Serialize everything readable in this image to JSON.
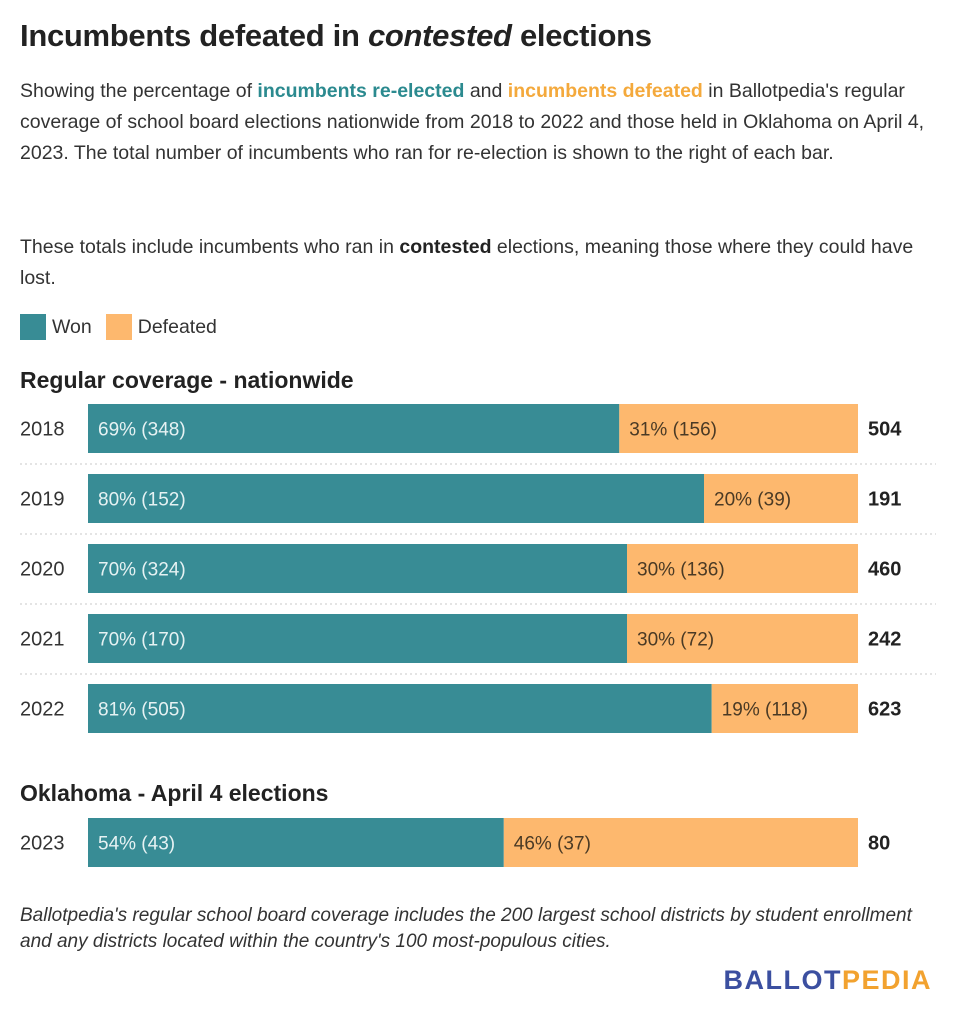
{
  "header": {
    "title_pre": "Incumbents defeated in ",
    "title_em": "contested",
    "title_post": " elections"
  },
  "description": {
    "p1_a": "Showing the percentage of ",
    "p1_won": "incumbents re-elected",
    "p1_b": " and ",
    "p1_def": "incumbents defeated",
    "p1_c": " in Ballotpedia's regular coverage of school board elections nationwide from 2018 to 2022 and those held in Oklahoma on April 4, 2023. The total number of incumbents who ran for re-election is shown to the right of each bar.",
    "p2_a": "These totals include incumbents who ran in ",
    "p2_bold": "contested",
    "p2_b": " elections, meaning those where they could have lost."
  },
  "legend": {
    "won": "Won",
    "defeated": "Defeated"
  },
  "colors": {
    "won": "#388c95",
    "defeated": "#fdb86e",
    "won_text": "#2b8a8f",
    "defeated_text": "#f4a93c"
  },
  "footnote": "Ballotpedia's regular school board coverage includes the 200 largest school districts by student enrollment and any districts located within the country's 100 most-populous cities.",
  "logo": {
    "part1": "BALLOT",
    "part2": "PEDIA"
  },
  "chart_data": {
    "type": "bar",
    "orientation": "horizontal",
    "stacked": true,
    "series_names": [
      "Won",
      "Defeated"
    ],
    "groups": [
      {
        "title": "Regular coverage - nationwide",
        "rows": [
          {
            "category": "2018",
            "won_pct": 69,
            "won": 348,
            "defeated_pct": 31,
            "defeated": 156,
            "total": 504,
            "won_label": "69% (348)",
            "defeated_label": "31% (156)",
            "total_label": "504"
          },
          {
            "category": "2019",
            "won_pct": 80,
            "won": 152,
            "defeated_pct": 20,
            "defeated": 39,
            "total": 191,
            "won_label": "80% (152)",
            "defeated_label": "20% (39)",
            "total_label": "191"
          },
          {
            "category": "2020",
            "won_pct": 70,
            "won": 324,
            "defeated_pct": 30,
            "defeated": 136,
            "total": 460,
            "won_label": "70% (324)",
            "defeated_label": "30% (136)",
            "total_label": "460"
          },
          {
            "category": "2021",
            "won_pct": 70,
            "won": 170,
            "defeated_pct": 30,
            "defeated": 72,
            "total": 242,
            "won_label": "70% (170)",
            "defeated_label": "30% (72)",
            "total_label": "242"
          },
          {
            "category": "2022",
            "won_pct": 81,
            "won": 505,
            "defeated_pct": 19,
            "defeated": 118,
            "total": 623,
            "won_label": "81% (505)",
            "defeated_label": "19% (118)",
            "total_label": "623"
          }
        ]
      },
      {
        "title": "Oklahoma - April 4 elections",
        "rows": [
          {
            "category": "2023",
            "won_pct": 54,
            "won": 43,
            "defeated_pct": 46,
            "defeated": 37,
            "total": 80,
            "won_label": "54% (43)",
            "defeated_label": "46% (37)",
            "total_label": "80"
          }
        ]
      }
    ],
    "legend_position": "top-left",
    "grid": false
  }
}
